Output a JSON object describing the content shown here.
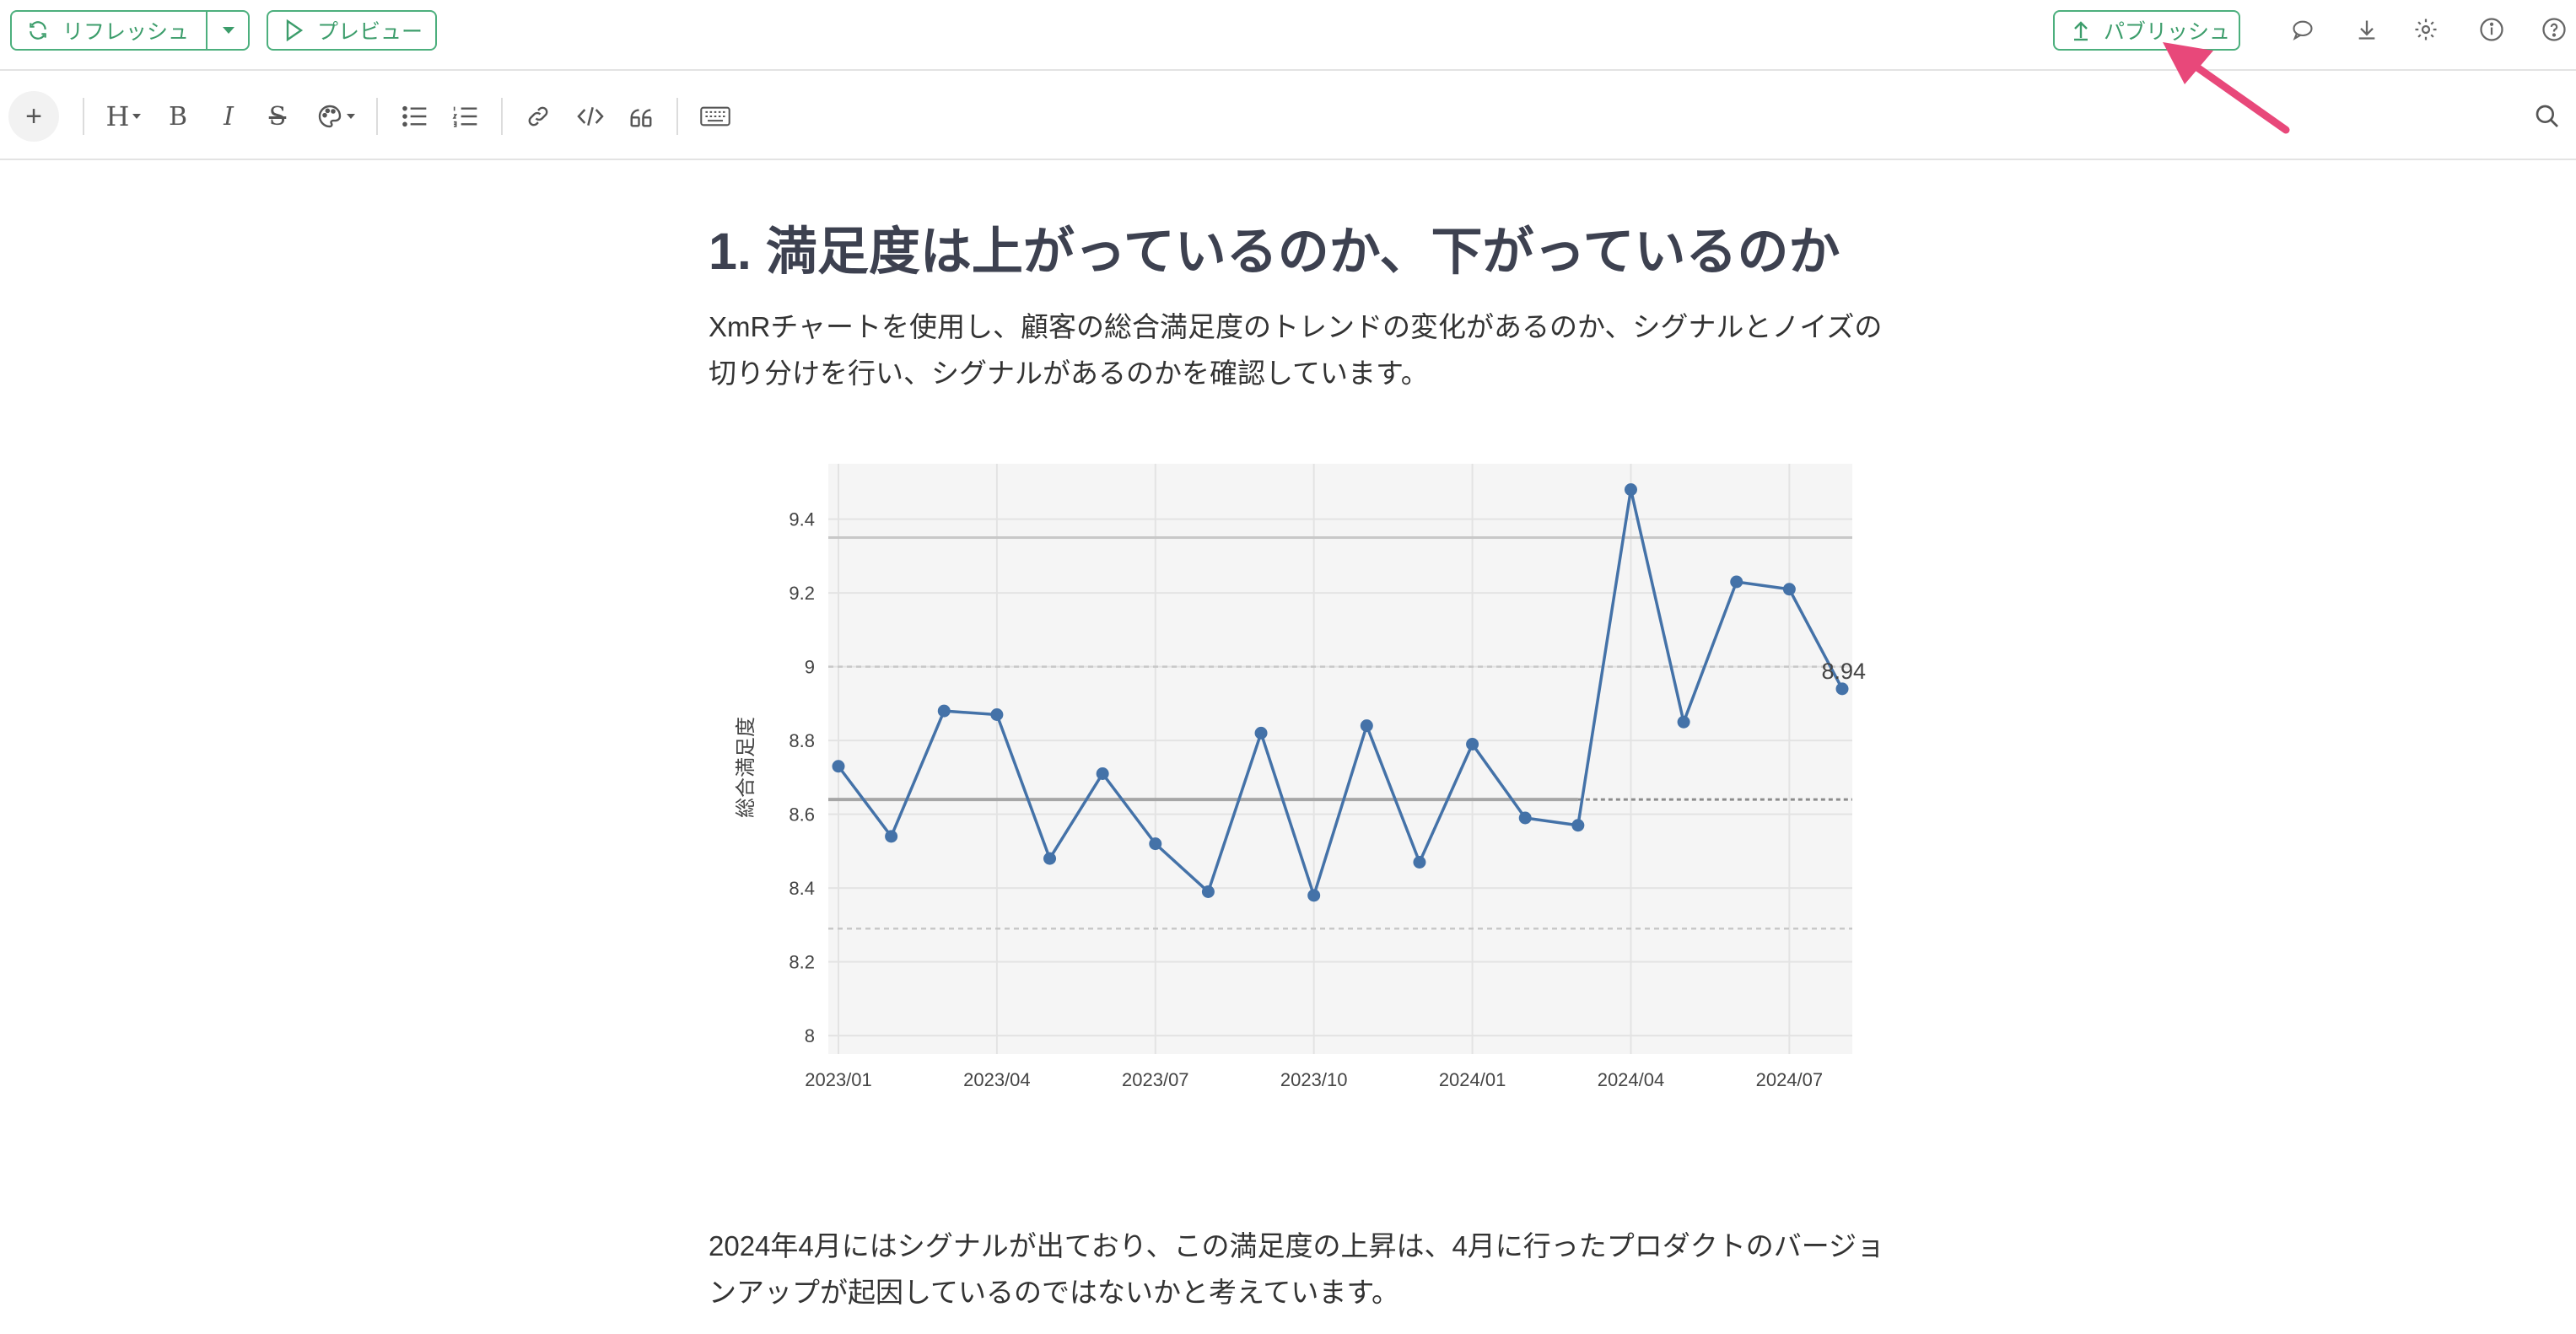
{
  "topbar": {
    "refresh_label": "リフレッシュ",
    "preview_label": "プレビュー",
    "publish_label": "パブリッシュ",
    "icons": [
      "comment-icon",
      "download-icon",
      "gear-icon",
      "info-icon",
      "help-icon"
    ]
  },
  "toolbar": {
    "heading_label": "H",
    "bold_label": "B",
    "italic_label": "I",
    "strike_label": "S",
    "plus_label": "+"
  },
  "document": {
    "heading": "1. 満足度は上がっているのか、下がっているのか",
    "paragraph1": "XmRチャートを使用し、顧客の総合満足度のトレンドの変化があるのか、シグナルとノイズの切り分けを行い、シグナルがあるのかを確認しています。",
    "paragraph2": "2024年4月にはシグナルが出ており、この満足度の上昇は、4月に行ったプロダクトのバージョンアップが起因しているのではないかと考えています。"
  },
  "colors": {
    "accent_green": "#4caf7d",
    "series_blue": "#4472a8",
    "annotation_pink": "#e8487a"
  },
  "chart_data": {
    "type": "line",
    "title": "",
    "xlabel": "",
    "ylabel": "総合満足度",
    "x": [
      "2023/01",
      "2023/02",
      "2023/03",
      "2023/04",
      "2023/05",
      "2023/06",
      "2023/07",
      "2023/08",
      "2023/09",
      "2023/10",
      "2023/11",
      "2023/12",
      "2024/01",
      "2024/02",
      "2024/03",
      "2024/04",
      "2024/05",
      "2024/06",
      "2024/07",
      "2024/08"
    ],
    "values": [
      8.73,
      8.54,
      8.88,
      8.87,
      8.48,
      8.71,
      8.52,
      8.39,
      8.82,
      8.38,
      8.84,
      8.47,
      8.79,
      8.59,
      8.57,
      9.48,
      8.85,
      9.23,
      9.21,
      8.94
    ],
    "x_tick_labels": [
      "2023/01",
      "2023/04",
      "2023/07",
      "2023/10",
      "2024/01",
      "2024/04",
      "2024/07"
    ],
    "y_ticks": [
      8,
      8.2,
      8.4,
      8.6,
      8.8,
      9,
      9.2,
      9.4
    ],
    "ylim": [
      7.95,
      9.55
    ],
    "last_value_label": "8.94",
    "center_line": 8.64,
    "upper_limit": 9.35,
    "lower_limit": 8.29,
    "upper_dashed": 9.0,
    "lower_dashed": 8.29,
    "grid": true
  }
}
